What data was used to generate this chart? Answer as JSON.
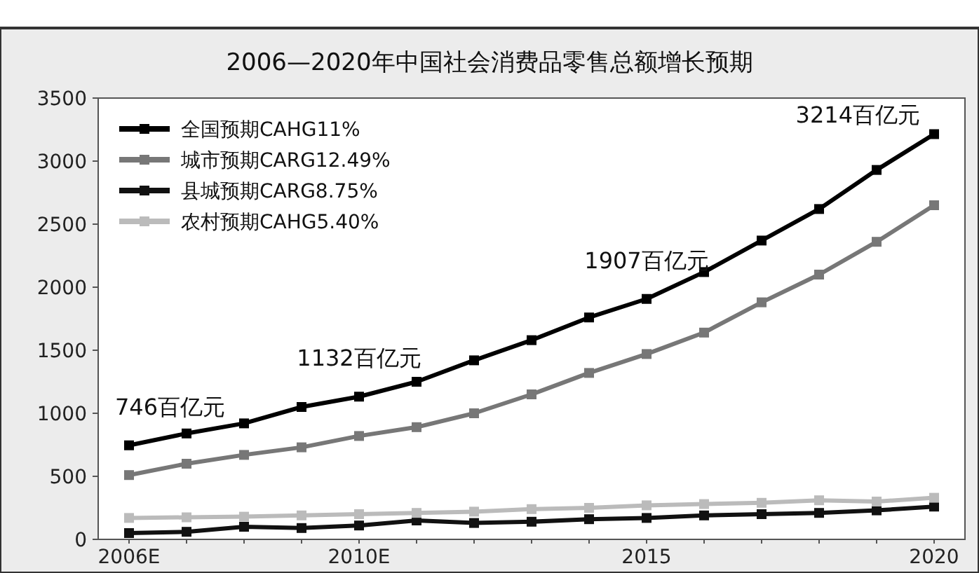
{
  "chart_data": {
    "type": "line",
    "title": "2006—2020年中国社会消费品零售总额增长预期",
    "categories": [
      "2006E",
      null,
      null,
      null,
      "2010E",
      null,
      null,
      null,
      null,
      "2015",
      null,
      null,
      null,
      null,
      "2020"
    ],
    "series": [
      {
        "name": "全国预期CAHG11%",
        "color": "#000000",
        "values": [
          746,
          840,
          920,
          1050,
          1132,
          1250,
          1420,
          1580,
          1760,
          1907,
          2120,
          2370,
          2620,
          2930,
          3214
        ]
      },
      {
        "name": "城市预期CARG12.49%",
        "color": "#777777",
        "values": [
          510,
          600,
          670,
          730,
          820,
          890,
          1000,
          1150,
          1320,
          1470,
          1640,
          1880,
          2100,
          2360,
          2650
        ]
      },
      {
        "name": "县城预期CARG8.75%",
        "color": "#111111",
        "values": [
          50,
          60,
          100,
          90,
          110,
          150,
          130,
          140,
          160,
          170,
          190,
          200,
          210,
          230,
          260
        ]
      },
      {
        "name": "农村预期CAHG5.40%",
        "color": "#bbbbbb",
        "values": [
          170,
          175,
          180,
          190,
          200,
          210,
          220,
          240,
          250,
          270,
          280,
          290,
          310,
          300,
          330
        ]
      }
    ],
    "annotations": [
      {
        "text": "746百亿元",
        "x": "2006E",
        "y": 746
      },
      {
        "text": "1132百亿元",
        "x": "2010E",
        "y": 1132
      },
      {
        "text": "1907百亿元",
        "x": "2015",
        "y": 1907
      },
      {
        "text": "3214百亿元",
        "x": "2020",
        "y": 3214
      }
    ],
    "ylim": [
      0,
      3500
    ],
    "yticks": [
      0,
      500,
      1000,
      1500,
      2000,
      2500,
      3000,
      3500
    ],
    "marker": "square",
    "line_style": "solid",
    "legend": "top left",
    "grid": false
  }
}
